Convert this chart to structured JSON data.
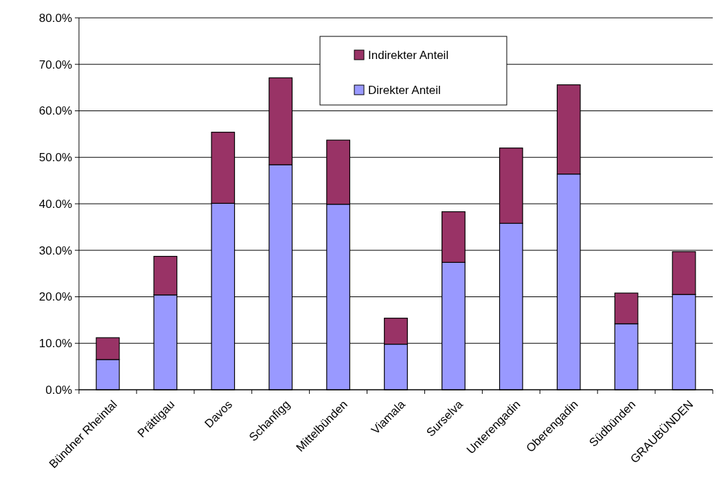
{
  "chart_data": {
    "type": "bar",
    "stacked": true,
    "categories": [
      "Bündner Rheintal",
      "Prättigau",
      "Davos",
      "Schanfigg",
      "Mittelbünden",
      "Viamala",
      "Surselva",
      "Unterengadin",
      "Oberengadin",
      "Südbünden",
      "GRAUBÜNDEN"
    ],
    "series": [
      {
        "name": "Direkter Anteil",
        "color": "#9999ff",
        "values": [
          6.5,
          20.4,
          40.1,
          48.4,
          39.9,
          9.8,
          27.4,
          35.8,
          46.4,
          14.2,
          20.5
        ]
      },
      {
        "name": "Indirekter Anteil",
        "color": "#993366",
        "values": [
          4.7,
          8.3,
          15.3,
          18.7,
          13.8,
          5.6,
          10.9,
          16.2,
          19.2,
          6.6,
          9.2
        ]
      }
    ],
    "ylim": [
      0,
      80
    ],
    "yticks": [
      {
        "value": 0,
        "label": "0.0%"
      },
      {
        "value": 10,
        "label": "10.0%"
      },
      {
        "value": 20,
        "label": "20.0%"
      },
      {
        "value": 30,
        "label": "30.0%"
      },
      {
        "value": 40,
        "label": "40.0%"
      },
      {
        "value": 50,
        "label": "50.0%"
      },
      {
        "value": 60,
        "label": "60.0%"
      },
      {
        "value": 70,
        "label": "70.0%"
      },
      {
        "value": 80,
        "label": "80.0%"
      }
    ],
    "grid": "y",
    "legend": "top"
  }
}
